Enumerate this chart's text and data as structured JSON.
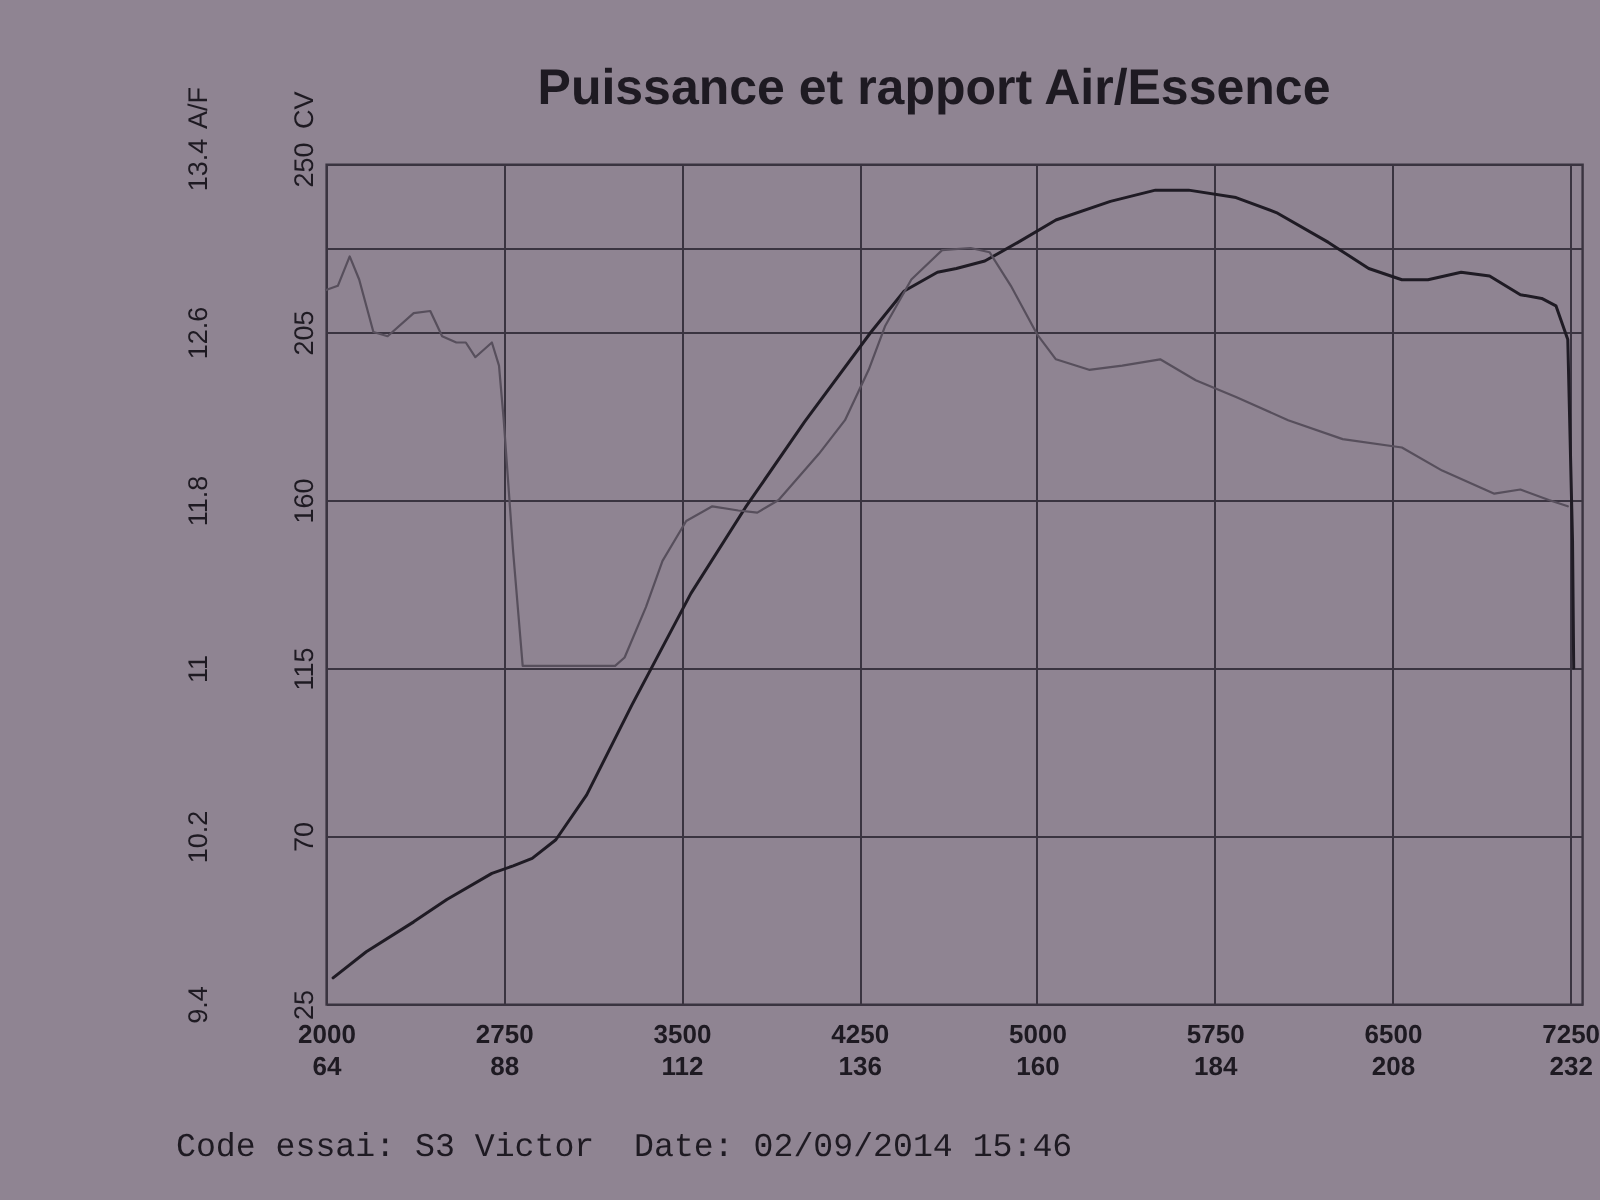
{
  "chart_data": {
    "type": "line",
    "title": "Puissance et rapport Air/Essence",
    "ylabel": "CV",
    "y2label": "A/F",
    "annotations": [
      "Code essai: S3 Victor  Date: 02/09/2014 15:46"
    ],
    "xlim": [
      2000,
      7300
    ],
    "xticks": [
      2000,
      2750,
      3500,
      4250,
      5000,
      5750,
      6500,
      7250
    ],
    "x2lim": [
      64,
      233.6
    ],
    "x2ticks": [
      64,
      88,
      112,
      136,
      160,
      184,
      208,
      232
    ],
    "ylim": [
      25,
      250
    ],
    "yticks": [
      25,
      70,
      115,
      160,
      205,
      {
        "value": 227.5,
        "label": null
      },
      250
    ],
    "y2lim": [
      9.4,
      13.4
    ],
    "y2ticks": [
      9.4,
      10.2,
      11,
      11.8,
      12.6,
      13.4
    ],
    "grid": true,
    "series": [
      {
        "color": "#1f1b24",
        "x": [
          2030,
          2170,
          2370,
          2510,
          2700,
          2790,
          2870,
          2970,
          3100,
          3290,
          3540,
          3770,
          4020,
          4300,
          4440,
          4580,
          4660,
          4780,
          4920,
          5080,
          5310,
          5500,
          5640,
          5840,
          6010,
          6230,
          6400,
          6540,
          6650,
          6790,
          6910,
          7040,
          7130,
          7190,
          7240,
          7260,
          7265
        ],
        "values": [
          32,
          39,
          47,
          53,
          60,
          62,
          64,
          69,
          81,
          105,
          135,
          158,
          181,
          205,
          216,
          221,
          222,
          224,
          229,
          235,
          240,
          243,
          243,
          241,
          237,
          229,
          222,
          219,
          219,
          221,
          220,
          215,
          214,
          212,
          203,
          149,
          115
        ]
      },
      {
        "color": "#574f5c",
        "axis": "y2",
        "x": [
          2000,
          2050,
          2100,
          2140,
          2200,
          2260,
          2370,
          2440,
          2490,
          2550,
          2590,
          2630,
          2700,
          2730,
          2750,
          2790,
          2830,
          3220,
          3260,
          3350,
          3420,
          3520,
          3630,
          3740,
          3820,
          3910,
          4080,
          4190,
          4290,
          4360,
          4470,
          4600,
          4720,
          4800,
          4890,
          5000,
          5080,
          5220,
          5360,
          5520,
          5670,
          5840,
          6060,
          6290,
          6540,
          6710,
          6930,
          7040,
          7160,
          7240
        ],
        "values": [
          12.8,
          12.82,
          12.96,
          12.85,
          12.6,
          12.58,
          12.69,
          12.7,
          12.58,
          12.55,
          12.55,
          12.48,
          12.55,
          12.44,
          12.18,
          11.55,
          11.01,
          11.01,
          11.05,
          11.29,
          11.51,
          11.7,
          11.77,
          11.75,
          11.74,
          11.8,
          12.02,
          12.18,
          12.42,
          12.63,
          12.85,
          12.99,
          13.0,
          12.98,
          12.82,
          12.59,
          12.47,
          12.42,
          12.44,
          12.47,
          12.37,
          12.29,
          12.18,
          12.09,
          12.05,
          11.94,
          11.83,
          11.85,
          11.8,
          11.77
        ]
      }
    ]
  }
}
